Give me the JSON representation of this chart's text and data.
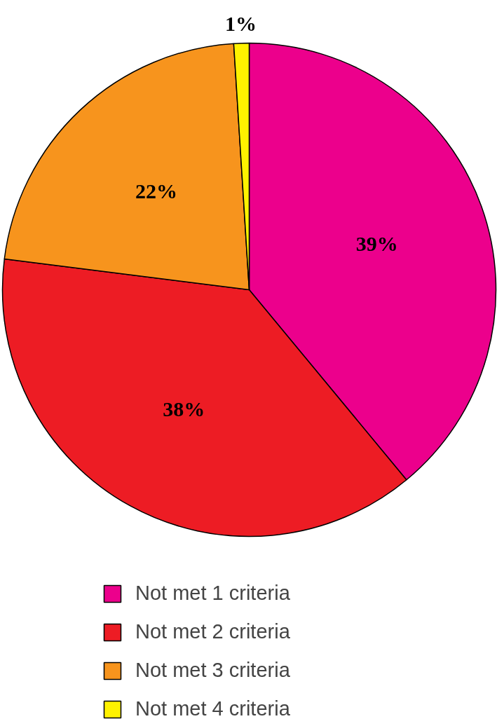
{
  "chart_data": {
    "type": "pie",
    "categories": [
      "Not met 1 criteria",
      "Not met 2 criteria",
      "Not met 3 criteria",
      "Not met 4 criteria"
    ],
    "values": [
      39,
      38,
      22,
      1
    ],
    "colors": [
      "#ec008c",
      "#ed1c24",
      "#f7941d",
      "#fff200"
    ],
    "value_labels": [
      "39%",
      "38%",
      "22%",
      "1%"
    ],
    "legend": "bottom"
  }
}
